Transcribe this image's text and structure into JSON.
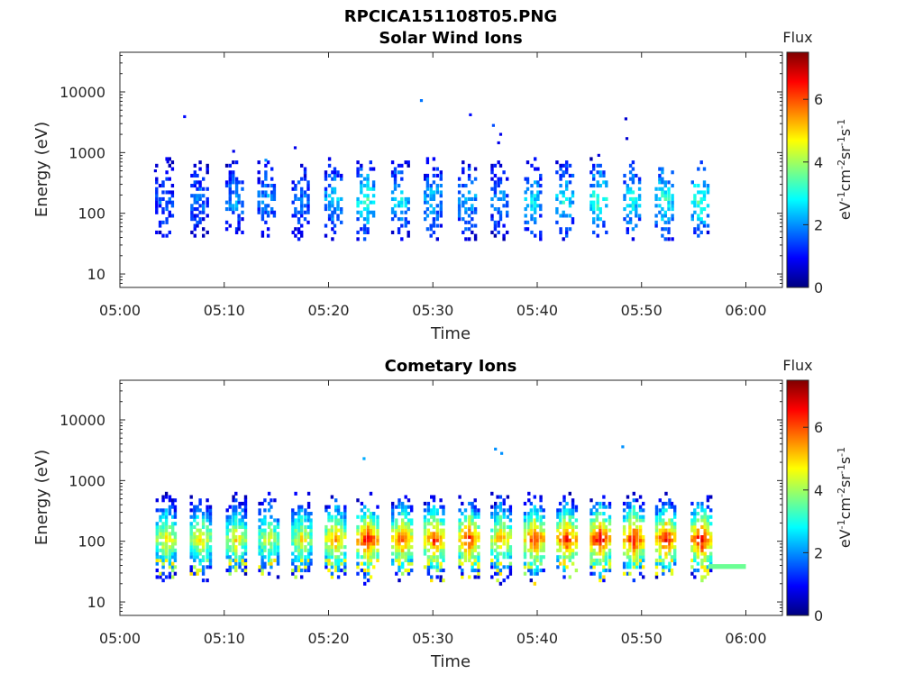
{
  "figure_title": "RPCICA151108T05.PNG",
  "colorbar": {
    "label": "Flux",
    "unit_main": "eV",
    "unit_parts": [
      {
        "t": "eV",
        "sup": false
      },
      {
        "t": "-1",
        "sup": true
      },
      {
        "t": "cm",
        "sup": false
      },
      {
        "t": "-2",
        "sup": true
      },
      {
        "t": "sr",
        "sup": false
      },
      {
        "t": "-1",
        "sup": true
      },
      {
        "t": "s",
        "sup": false
      },
      {
        "t": "-1",
        "sup": true
      }
    ],
    "ticks": [
      0,
      2,
      4,
      6
    ],
    "range": [
      0,
      7.5
    ],
    "colormap": "jet"
  },
  "chart_data": [
    {
      "type": "heatmap",
      "title": "Solar Wind Ions",
      "xlabel": "Time",
      "ylabel": "Energy (eV)",
      "x_ticks": [
        "05:00",
        "05:10",
        "05:20",
        "05:30",
        "05:40",
        "05:50",
        "06:00"
      ],
      "x_range_min": [
        0,
        63.5
      ],
      "y_scale": "log",
      "y_range_eV": [
        6,
        45000
      ],
      "y_ticks": [
        10,
        100,
        1000,
        10000
      ],
      "y_tick_labels": [
        "10",
        "100",
        "1000",
        "10000"
      ],
      "sweep_times_min": [
        4.3,
        7.6,
        11.0,
        14.1,
        17.3,
        20.5,
        23.6,
        26.9,
        30.0,
        33.3,
        36.4,
        39.6,
        42.7,
        45.9,
        49.1,
        52.2,
        55.6
      ],
      "sweep_peak_flux": [
        1.8,
        1.9,
        2.2,
        2.2,
        2.0,
        2.6,
        3.4,
        2.8,
        2.6,
        2.6,
        2.2,
        2.8,
        3.0,
        3.4,
        3.0,
        3.3,
        3.6
      ],
      "core_energy_eV": [
        40,
        600
      ],
      "isolated_points": [
        {
          "t": 6.2,
          "e": 3900,
          "f": 1.0
        },
        {
          "t": 28.9,
          "e": 7200,
          "f": 1.8
        },
        {
          "t": 33.6,
          "e": 4200,
          "f": 1.0
        },
        {
          "t": 35.8,
          "e": 2800,
          "f": 1.5
        },
        {
          "t": 36.5,
          "e": 2000,
          "f": 0.8
        },
        {
          "t": 36.3,
          "e": 1450,
          "f": 0.8
        },
        {
          "t": 48.5,
          "e": 3600,
          "f": 0.6
        },
        {
          "t": 48.6,
          "e": 1700,
          "f": 0.6
        },
        {
          "t": 16.8,
          "e": 1200,
          "f": 0.8
        },
        {
          "t": 10.9,
          "e": 1050,
          "f": 0.8
        },
        {
          "t": 45.9,
          "e": 900,
          "f": 0.7
        },
        {
          "t": 14.0,
          "e": 750,
          "f": 2.0
        },
        {
          "t": 4.6,
          "e": 700,
          "f": 0.8
        },
        {
          "t": 3.4,
          "e": 500,
          "f": 0.7
        }
      ]
    },
    {
      "type": "heatmap",
      "title": "Cometary Ions",
      "xlabel": "Time",
      "ylabel": "Energy (eV)",
      "x_ticks": [
        "05:00",
        "05:10",
        "05:20",
        "05:30",
        "05:40",
        "05:50",
        "06:00"
      ],
      "x_range_min": [
        0,
        63.5
      ],
      "y_scale": "log",
      "y_range_eV": [
        6,
        45000
      ],
      "y_ticks": [
        10,
        100,
        1000,
        10000
      ],
      "y_tick_labels": [
        "10",
        "100",
        "1000",
        "10000"
      ],
      "sweep_times_min": [
        4.3,
        7.6,
        11.0,
        14.1,
        17.3,
        20.5,
        23.6,
        26.9,
        30.0,
        33.3,
        36.4,
        39.6,
        42.7,
        45.9,
        49.1,
        52.2,
        55.6
      ],
      "sweep_peak_flux": [
        5.0,
        5.0,
        4.9,
        4.6,
        4.8,
        5.6,
        6.7,
        6.1,
        6.3,
        6.4,
        5.5,
        6.3,
        6.5,
        6.9,
        6.6,
        6.6,
        6.8
      ],
      "core_energy_eV": [
        35,
        300
      ],
      "flat_band": {
        "t_start": 56.4,
        "t_end": 60.0,
        "e_low": 35,
        "e_high": 42,
        "f": 3.6
      },
      "isolated_points": [
        {
          "t": 36.0,
          "e": 3300,
          "f": 2.0
        },
        {
          "t": 48.2,
          "e": 3600,
          "f": 2.0
        },
        {
          "t": 36.6,
          "e": 2800,
          "f": 2.0
        },
        {
          "t": 23.4,
          "e": 2300,
          "f": 2.2
        }
      ]
    }
  ]
}
